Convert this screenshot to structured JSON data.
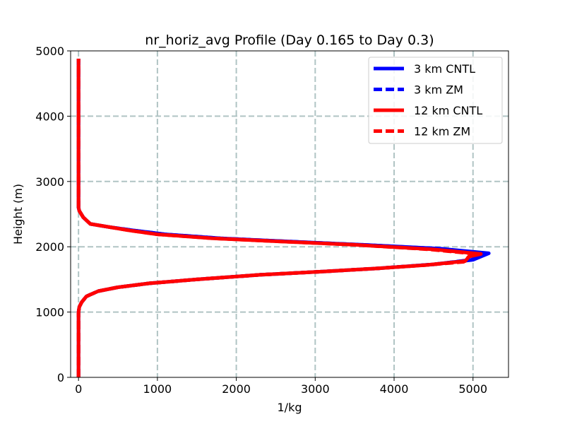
{
  "chart_data": {
    "type": "line",
    "title": "nr_horiz_avg Profile (Day 0.165 to Day 0.3)",
    "xlabel": "1/kg",
    "ylabel": "Height (m)",
    "xlim": [
      -100,
      5450
    ],
    "ylim": [
      0,
      5000
    ],
    "xticks": [
      0,
      1000,
      2000,
      3000,
      4000,
      5000
    ],
    "yticks": [
      0,
      1000,
      2000,
      3000,
      4000,
      5000
    ],
    "xtick_labels": [
      "0",
      "1000",
      "2000",
      "3000",
      "4000",
      "5000"
    ],
    "ytick_labels": [
      "0",
      "1000",
      "2000",
      "3000",
      "4000",
      "5000"
    ],
    "grid": true,
    "legend_position": "top-right",
    "series": [
      {
        "name": "3 km CNTL",
        "color": "#0000ff",
        "style": "solid",
        "points": [
          [
            0,
            0
          ],
          [
            0,
            500
          ],
          [
            0,
            1000
          ],
          [
            10,
            1080
          ],
          [
            40,
            1150
          ],
          [
            100,
            1240
          ],
          [
            250,
            1320
          ],
          [
            500,
            1380
          ],
          [
            900,
            1440
          ],
          [
            1500,
            1500
          ],
          [
            2300,
            1570
          ],
          [
            3100,
            1620
          ],
          [
            3800,
            1670
          ],
          [
            4500,
            1730
          ],
          [
            5000,
            1800
          ],
          [
            5200,
            1900
          ],
          [
            4600,
            1970
          ],
          [
            3600,
            2030
          ],
          [
            2500,
            2090
          ],
          [
            1800,
            2130
          ],
          [
            1100,
            2190
          ],
          [
            700,
            2250
          ],
          [
            400,
            2300
          ],
          [
            150,
            2350
          ],
          [
            60,
            2450
          ],
          [
            10,
            2550
          ],
          [
            0,
            2600
          ],
          [
            0,
            3000
          ],
          [
            0,
            4000
          ],
          [
            0,
            4880
          ]
        ]
      },
      {
        "name": "3 km ZM",
        "color": "#0000ff",
        "style": "dashed",
        "points": [
          [
            0,
            0
          ],
          [
            0,
            500
          ],
          [
            0,
            1000
          ],
          [
            10,
            1080
          ],
          [
            40,
            1150
          ],
          [
            100,
            1240
          ],
          [
            250,
            1320
          ],
          [
            500,
            1380
          ],
          [
            900,
            1440
          ],
          [
            1500,
            1500
          ],
          [
            2300,
            1570
          ],
          [
            3100,
            1620
          ],
          [
            3800,
            1670
          ],
          [
            4500,
            1730
          ],
          [
            4980,
            1800
          ],
          [
            5150,
            1890
          ],
          [
            4580,
            1970
          ],
          [
            3600,
            2030
          ],
          [
            2500,
            2090
          ],
          [
            1800,
            2130
          ],
          [
            1100,
            2190
          ],
          [
            700,
            2250
          ],
          [
            400,
            2300
          ],
          [
            150,
            2350
          ],
          [
            60,
            2450
          ],
          [
            10,
            2550
          ],
          [
            0,
            2600
          ],
          [
            0,
            3000
          ],
          [
            0,
            4000
          ],
          [
            0,
            4880
          ]
        ]
      },
      {
        "name": "12 km CNTL",
        "color": "#ff0000",
        "style": "solid",
        "points": [
          [
            0,
            0
          ],
          [
            0,
            500
          ],
          [
            0,
            1000
          ],
          [
            10,
            1080
          ],
          [
            40,
            1150
          ],
          [
            100,
            1240
          ],
          [
            250,
            1320
          ],
          [
            500,
            1380
          ],
          [
            900,
            1440
          ],
          [
            1500,
            1500
          ],
          [
            2300,
            1570
          ],
          [
            3100,
            1620
          ],
          [
            3800,
            1670
          ],
          [
            4400,
            1720
          ],
          [
            4900,
            1780
          ],
          [
            4950,
            1850
          ],
          [
            5100,
            1890
          ],
          [
            4500,
            1960
          ],
          [
            3500,
            2030
          ],
          [
            2400,
            2090
          ],
          [
            1700,
            2130
          ],
          [
            1000,
            2190
          ],
          [
            650,
            2250
          ],
          [
            400,
            2300
          ],
          [
            150,
            2350
          ],
          [
            60,
            2450
          ],
          [
            10,
            2550
          ],
          [
            0,
            2600
          ],
          [
            0,
            3000
          ],
          [
            0,
            4000
          ],
          [
            0,
            4880
          ]
        ]
      },
      {
        "name": "12 km ZM",
        "color": "#ff0000",
        "style": "dashed",
        "points": [
          [
            0,
            0
          ],
          [
            0,
            500
          ],
          [
            0,
            1000
          ],
          [
            10,
            1080
          ],
          [
            40,
            1150
          ],
          [
            100,
            1240
          ],
          [
            250,
            1320
          ],
          [
            500,
            1380
          ],
          [
            900,
            1440
          ],
          [
            1500,
            1500
          ],
          [
            2300,
            1570
          ],
          [
            3100,
            1620
          ],
          [
            3800,
            1670
          ],
          [
            4400,
            1720
          ],
          [
            4880,
            1770
          ],
          [
            4950,
            1850
          ],
          [
            5050,
            1890
          ],
          [
            4450,
            1960
          ],
          [
            3500,
            2030
          ],
          [
            2400,
            2090
          ],
          [
            1700,
            2130
          ],
          [
            1000,
            2190
          ],
          [
            650,
            2250
          ],
          [
            400,
            2300
          ],
          [
            150,
            2350
          ],
          [
            60,
            2450
          ],
          [
            10,
            2550
          ],
          [
            0,
            2600
          ],
          [
            0,
            3000
          ],
          [
            0,
            4000
          ],
          [
            0,
            4880
          ]
        ]
      }
    ]
  }
}
